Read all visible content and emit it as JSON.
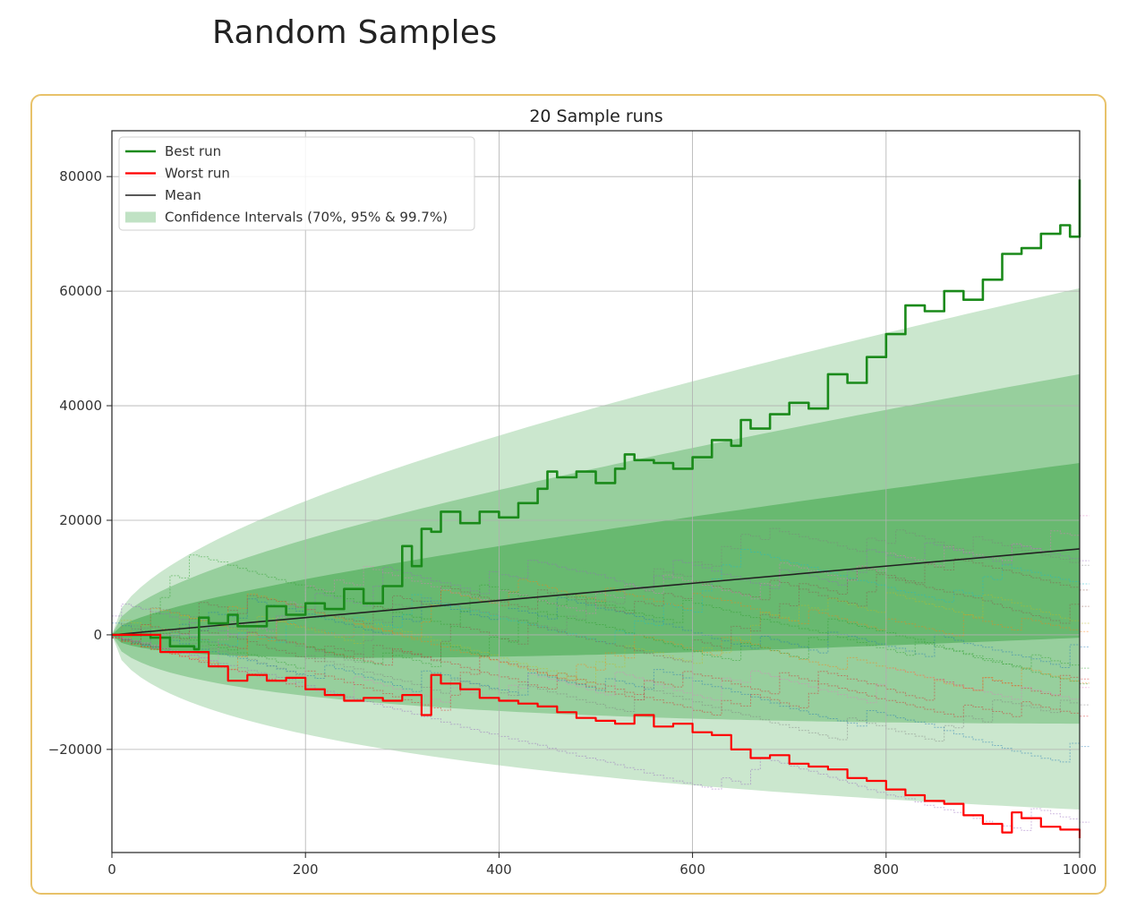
{
  "page": {
    "title": "Random Samples"
  },
  "colors": {
    "frame": "#e8c26a",
    "best": "#1a8a1a",
    "worst": "#ff0000",
    "mean": "#222222",
    "band": "#2e9e3a"
  },
  "chart_data": {
    "type": "line",
    "title": "20 Sample runs",
    "xlabel": "",
    "ylabel": "",
    "xlim": [
      0,
      1000
    ],
    "ylim": [
      -38000,
      88000
    ],
    "xticks": [
      0,
      200,
      400,
      600,
      800,
      1000
    ],
    "yticks": [
      -20000,
      0,
      20000,
      40000,
      60000,
      80000
    ],
    "grid": true,
    "legend": {
      "placement": "upper-left",
      "entries": [
        "Best run",
        "Worst run",
        "Mean",
        "Confidence Intervals (70%, 95% & 99.7%)"
      ]
    },
    "mean": {
      "x": [
        0,
        1000
      ],
      "y": [
        0,
        15000
      ]
    },
    "confidence_bands": [
      {
        "level": "99.7%",
        "upper_at_1000": 60500,
        "lower_at_1000": -30500
      },
      {
        "level": "95%",
        "upper_at_1000": 45500,
        "lower_at_1000": -15500
      },
      {
        "level": "70%",
        "upper_at_1000": 30000,
        "lower_at_1000": -500
      }
    ],
    "best_run": {
      "name": "Best run",
      "x": [
        0,
        40,
        60,
        85,
        90,
        100,
        120,
        130,
        160,
        180,
        200,
        220,
        240,
        260,
        280,
        300,
        310,
        320,
        330,
        340,
        360,
        380,
        400,
        420,
        440,
        450,
        460,
        480,
        500,
        520,
        530,
        540,
        560,
        580,
        600,
        620,
        640,
        650,
        660,
        680,
        700,
        720,
        740,
        760,
        780,
        800,
        820,
        840,
        860,
        880,
        900,
        920,
        940,
        960,
        980,
        990,
        1000
      ],
      "y": [
        0,
        -500,
        -2000,
        -2500,
        3000,
        2000,
        3500,
        1500,
        5000,
        3500,
        5500,
        4500,
        8000,
        5500,
        8500,
        15500,
        12000,
        18500,
        18000,
        21500,
        19500,
        21500,
        20500,
        23000,
        25500,
        28500,
        27500,
        28500,
        26500,
        29000,
        31500,
        30500,
        30000,
        29000,
        31000,
        34000,
        33000,
        37500,
        36000,
        38500,
        40500,
        39500,
        45500,
        44000,
        48500,
        52500,
        57500,
        56500,
        60000,
        58500,
        62000,
        66500,
        67500,
        70000,
        71500,
        69500,
        79500
      ]
    },
    "worst_run": {
      "name": "Worst run",
      "x": [
        0,
        50,
        100,
        120,
        140,
        160,
        180,
        200,
        220,
        240,
        260,
        280,
        300,
        320,
        330,
        340,
        360,
        380,
        400,
        420,
        440,
        460,
        480,
        500,
        520,
        540,
        560,
        580,
        600,
        620,
        640,
        660,
        680,
        700,
        720,
        740,
        760,
        780,
        800,
        820,
        840,
        860,
        880,
        900,
        920,
        930,
        940,
        960,
        980,
        1000
      ],
      "y": [
        0,
        -3000,
        -5500,
        -8000,
        -7000,
        -8000,
        -7500,
        -9500,
        -10500,
        -11500,
        -11000,
        -11500,
        -10500,
        -14000,
        -7000,
        -8500,
        -9500,
        -11000,
        -11500,
        -12000,
        -12500,
        -13500,
        -14500,
        -15000,
        -15500,
        -14000,
        -16000,
        -15500,
        -17000,
        -17500,
        -20000,
        -21500,
        -21000,
        -22500,
        -23000,
        -23500,
        -25000,
        -25500,
        -27000,
        -28000,
        -29000,
        -29500,
        -31500,
        -33000,
        -34500,
        -31000,
        -32000,
        -33500,
        -34000,
        -35500
      ]
    },
    "sample_run_count": 20
  }
}
